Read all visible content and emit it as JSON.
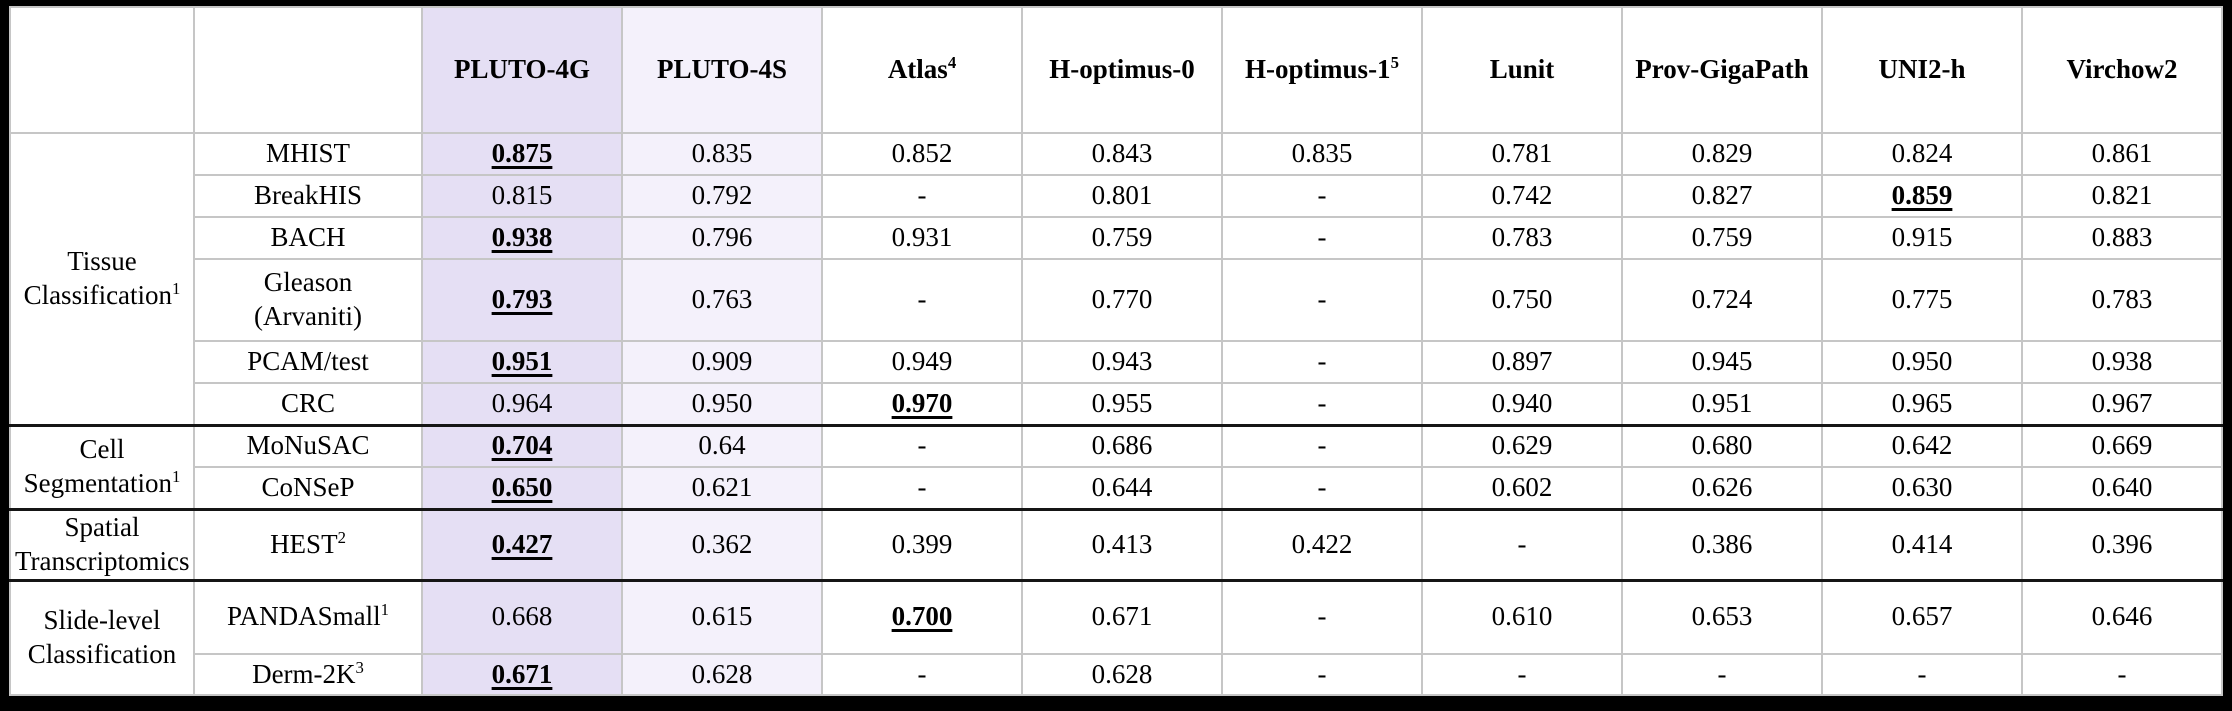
{
  "colors": {
    "pluto4g_column_bg": "#e5dff4",
    "pluto4s_column_bg": "#f4f1fb",
    "grid_line": "#c6c6c6",
    "group_separator": "#151515",
    "outer_frame": "#000000",
    "text": "#000000"
  },
  "chart_data": {
    "type": "table",
    "missing_marker": "-",
    "best_value_style": "bold underline",
    "model_columns": [
      {
        "label": "PLUTO-4G",
        "sup": ""
      },
      {
        "label": "PLUTO-4S",
        "sup": ""
      },
      {
        "label": "Atlas",
        "sup": "4"
      },
      {
        "label": "H-optimus-0",
        "sup": ""
      },
      {
        "label": "H-optimus-1",
        "sup": "5"
      },
      {
        "label": "Lunit",
        "sup": ""
      },
      {
        "label": "Prov-GigaPath",
        "sup": ""
      },
      {
        "label": "UNI2-h",
        "sup": ""
      },
      {
        "label": "Virchow2",
        "sup": ""
      }
    ],
    "row_groups": [
      {
        "category": "Tissue Classification",
        "category_sup": "1",
        "rows": [
          {
            "dataset": "MHIST",
            "dataset_sup": "",
            "values": [
              "0.875",
              "0.835",
              "0.852",
              "0.843",
              "0.835",
              "0.781",
              "0.829",
              "0.824",
              "0.861"
            ],
            "best_index": 0
          },
          {
            "dataset": "BreakHIS",
            "dataset_sup": "",
            "values": [
              "0.815",
              "0.792",
              "-",
              "0.801",
              "-",
              "0.742",
              "0.827",
              "0.859",
              "0.821"
            ],
            "best_index": 7
          },
          {
            "dataset": "BACH",
            "dataset_sup": "",
            "values": [
              "0.938",
              "0.796",
              "0.931",
              "0.759",
              "-",
              "0.783",
              "0.759",
              "0.915",
              "0.883"
            ],
            "best_index": 0
          },
          {
            "dataset": "Gleason\n(Arvaniti)",
            "dataset_sup": "",
            "values": [
              "0.793",
              "0.763",
              "-",
              "0.770",
              "-",
              "0.750",
              "0.724",
              "0.775",
              "0.783"
            ],
            "best_index": 0
          },
          {
            "dataset": "PCAM/test",
            "dataset_sup": "",
            "values": [
              "0.951",
              "0.909",
              "0.949",
              "0.943",
              "-",
              "0.897",
              "0.945",
              "0.950",
              "0.938"
            ],
            "best_index": 0
          },
          {
            "dataset": "CRC",
            "dataset_sup": "",
            "values": [
              "0.964",
              "0.950",
              "0.970",
              "0.955",
              "-",
              "0.940",
              "0.951",
              "0.965",
              "0.967"
            ],
            "best_index": 2
          }
        ]
      },
      {
        "category": "Cell Segmentation",
        "category_sup": "1",
        "rows": [
          {
            "dataset": "MoNuSAC",
            "dataset_sup": "",
            "values": [
              "0.704",
              "0.64",
              "-",
              "0.686",
              "-",
              "0.629",
              "0.680",
              "0.642",
              "0.669"
            ],
            "best_index": 0
          },
          {
            "dataset": "CoNSeP",
            "dataset_sup": "",
            "values": [
              "0.650",
              "0.621",
              "-",
              "0.644",
              "-",
              "0.602",
              "0.626",
              "0.630",
              "0.640"
            ],
            "best_index": 0
          }
        ]
      },
      {
        "category": "Spatial Transcriptomics",
        "category_sup": "",
        "rows": [
          {
            "dataset": "HEST",
            "dataset_sup": "2",
            "values": [
              "0.427",
              "0.362",
              "0.399",
              "0.413",
              "0.422",
              "-",
              "0.386",
              "0.414",
              "0.396"
            ],
            "best_index": 0
          }
        ]
      },
      {
        "category": "Slide-level Classification",
        "category_sup": "",
        "rows": [
          {
            "dataset": "PANDASmall",
            "dataset_sup": "1",
            "values": [
              "0.668",
              "0.615",
              "0.700",
              "0.671",
              "-",
              "0.610",
              "0.653",
              "0.657",
              "0.646"
            ],
            "best_index": 2
          },
          {
            "dataset": "Derm-2K",
            "dataset_sup": "3",
            "values": [
              "0.671",
              "0.628",
              "-",
              "0.628",
              "-",
              "-",
              "-",
              "-",
              "-"
            ],
            "best_index": 0
          }
        ]
      }
    ]
  }
}
